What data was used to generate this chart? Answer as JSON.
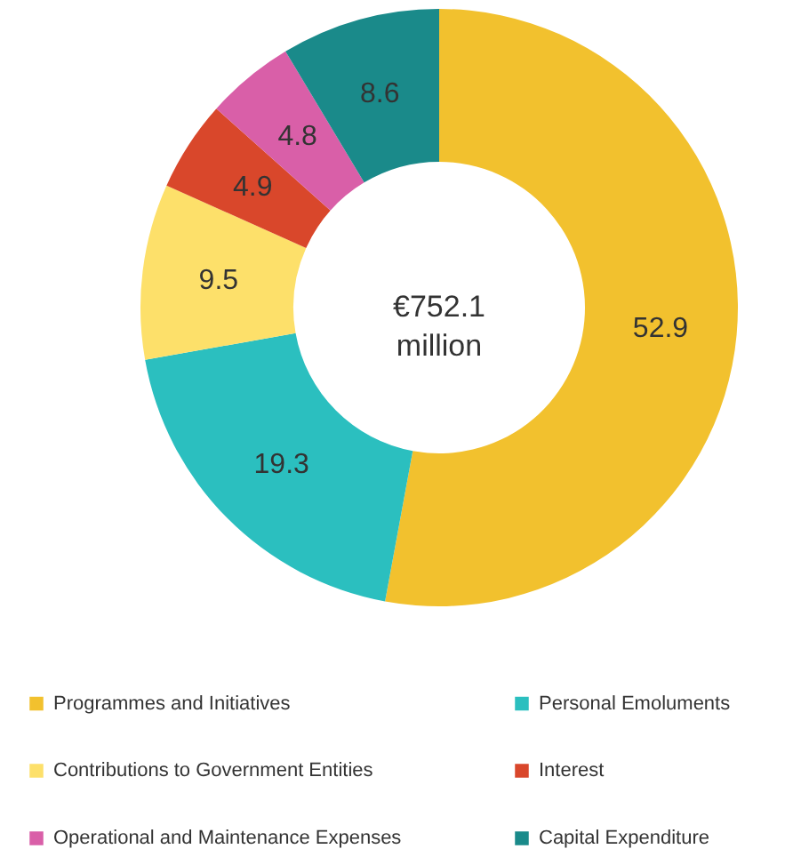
{
  "chart_data": {
    "type": "donut",
    "categories": [
      "Programmes and Initiatives",
      "Personal Emoluments",
      "Contributions to Government Entities",
      "Interest",
      "Operational and Maintenance Expenses",
      "Capital Expenditure"
    ],
    "values": [
      52.9,
      19.3,
      9.5,
      4.9,
      4.8,
      8.6
    ],
    "colors": [
      "#f2c12e",
      "#2bbfbf",
      "#fde06a",
      "#d9472b",
      "#d95fa8",
      "#1a8a8a"
    ],
    "data_labels": true,
    "legend": "bottom",
    "annotations": [
      "€752.1 million"
    ]
  }
}
